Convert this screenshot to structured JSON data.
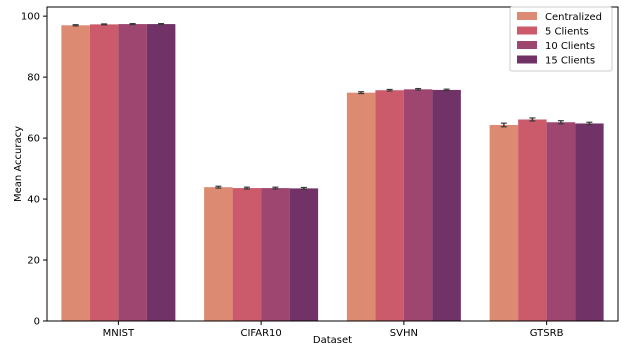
{
  "chart_data": {
    "type": "bar",
    "title": "",
    "xlabel": "Dataset",
    "ylabel": "Mean Accuracy",
    "categories": [
      "MNIST",
      "CIFAR10",
      "SVHN",
      "GTSRB"
    ],
    "ylim": [
      0,
      103
    ],
    "yticks": [
      0,
      20,
      40,
      60,
      80,
      100
    ],
    "grid": false,
    "legend_position": "top-right",
    "series": [
      {
        "name": "Centralized",
        "color": "#dd8a72",
        "values": [
          97.0,
          43.9,
          74.9,
          64.3
        ],
        "errors": [
          0.2,
          0.3,
          0.3,
          0.6
        ]
      },
      {
        "name": "5 Clients",
        "color": "#cb5a6a",
        "values": [
          97.3,
          43.6,
          75.7,
          66.1
        ],
        "errors": [
          0.15,
          0.3,
          0.25,
          0.5
        ]
      },
      {
        "name": "10 Clients",
        "color": "#9e466f",
        "values": [
          97.4,
          43.6,
          76.0,
          65.2
        ],
        "errors": [
          0.15,
          0.3,
          0.25,
          0.5
        ]
      },
      {
        "name": "15 Clients",
        "color": "#713367",
        "values": [
          97.4,
          43.5,
          75.8,
          64.8
        ],
        "errors": [
          0.15,
          0.3,
          0.25,
          0.4
        ]
      }
    ]
  }
}
